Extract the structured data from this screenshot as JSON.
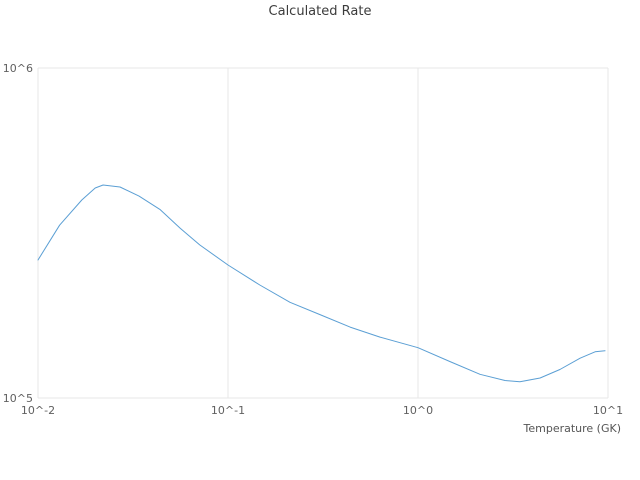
{
  "chart_data": {
    "type": "line",
    "title": "Calculated Rate",
    "xlabel": "Temperature (GK)",
    "ylabel": "",
    "xscale": "log",
    "yscale": "log",
    "xlim": [
      0.01,
      10
    ],
    "ylim": [
      100000,
      1000000
    ],
    "x_ticks": [
      0.01,
      0.1,
      1,
      10
    ],
    "x_tick_labels": [
      "10^-2",
      "10^-1",
      "10^0",
      "10^1"
    ],
    "y_ticks": [
      100000,
      1000000
    ],
    "y_tick_labels": [
      "10^5",
      "10^6"
    ],
    "grid": true,
    "legend": false,
    "line_color": "#5b9fd4",
    "grid_color": "#e7e7e7",
    "series": [
      {
        "name": "calculated-rate",
        "x": [
          0.01,
          0.013,
          0.017,
          0.02,
          0.022,
          0.027,
          0.034,
          0.044,
          0.056,
          0.071,
          0.1,
          0.147,
          0.212,
          0.305,
          0.439,
          0.631,
          1.0,
          1.47,
          2.12,
          2.87,
          3.44,
          4.39,
          5.58,
          7.13,
          8.55,
          9.64
        ],
        "y": [
          262000,
          334000,
          398000,
          433000,
          442000,
          436000,
          409000,
          372000,
          327000,
          291000,
          253000,
          220000,
          195000,
          179000,
          164000,
          153000,
          142000,
          129000,
          118000,
          113000,
          112000,
          115000,
          122000,
          132000,
          138000,
          139000
        ]
      }
    ]
  }
}
